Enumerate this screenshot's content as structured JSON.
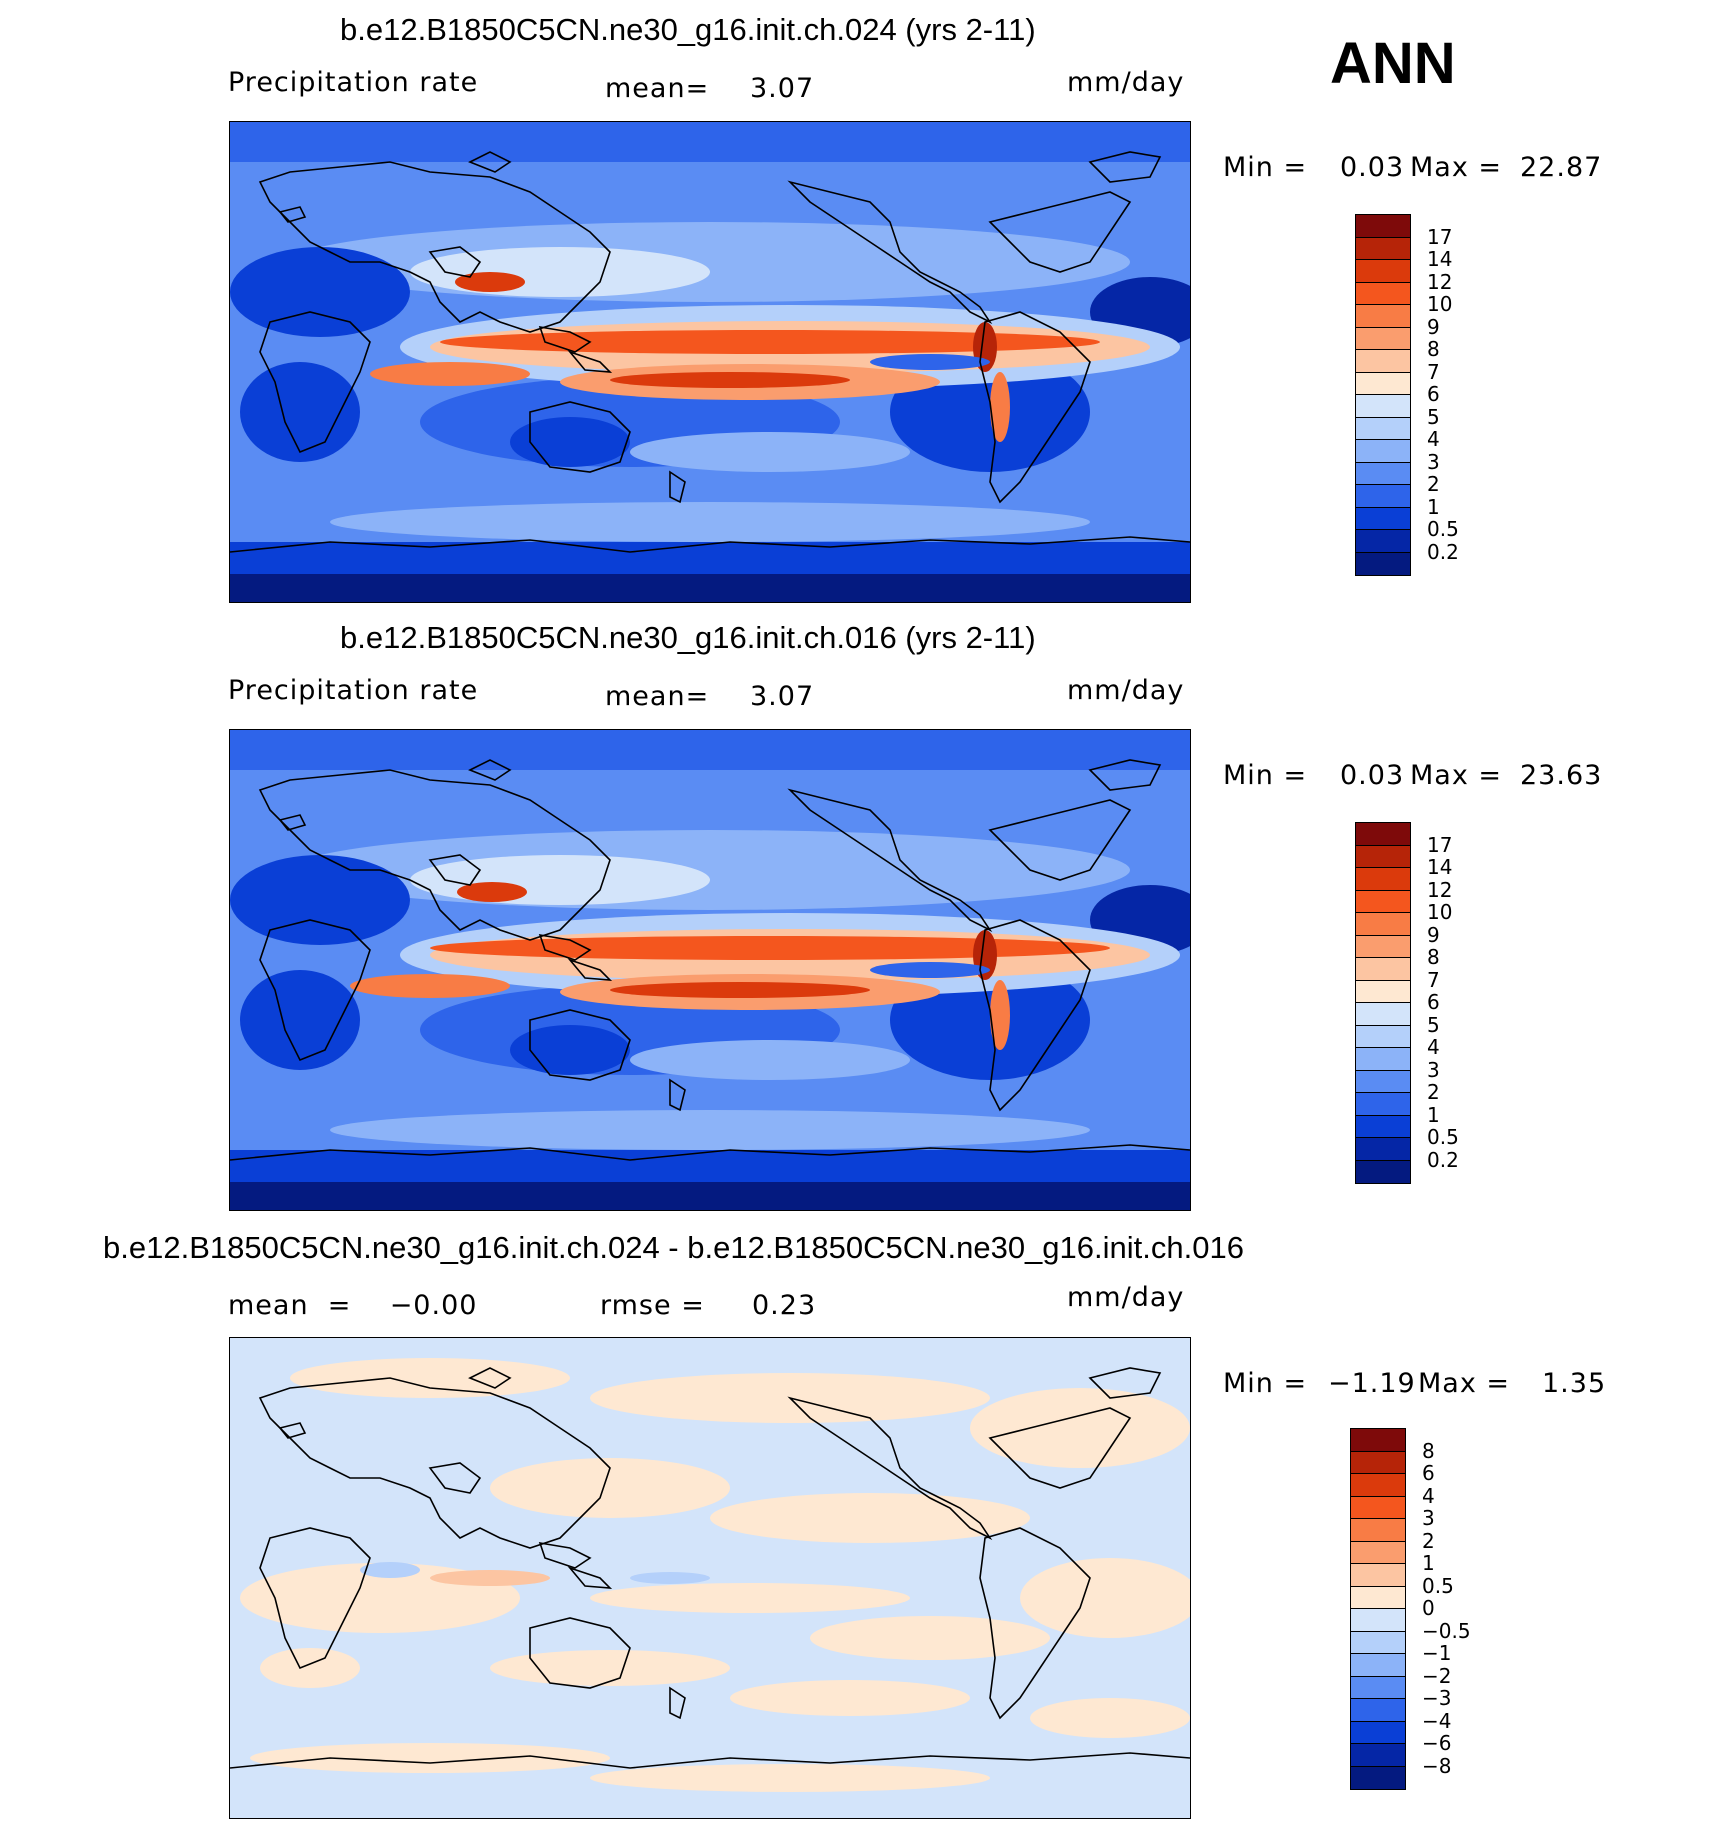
{
  "season": "ANN",
  "panels": [
    {
      "title": "b.e12.B1850C5CN.ne30_g16.init.ch.024 (yrs 2-11)",
      "left_label": "Precipitation  rate",
      "mid_label": "mean=",
      "mid_value": "3.07",
      "units": "mm/day",
      "min_label": "Min  =",
      "min_value": "0.03",
      "max_label": "Max  =",
      "max_value": "22.87",
      "levels": [
        "17",
        "14",
        "12",
        "10",
        "9",
        "8",
        "7",
        "6",
        "5",
        "4",
        "3",
        "2",
        "1",
        "0.5",
        "0.2"
      ],
      "colors": [
        "#7e0a0a",
        "#b62408",
        "#db3a0c",
        "#f4561e",
        "#f87c45",
        "#fa9d6e",
        "#fcc5a2",
        "#fee8d2",
        "#d3e4fa",
        "#b4d0fa",
        "#8cb3f8",
        "#5a8cf3",
        "#2e64ea",
        "#0a3fd6",
        "#0526a6",
        "#041a80"
      ]
    },
    {
      "title": "b.e12.B1850C5CN.ne30_g16.init.ch.016 (yrs 2-11)",
      "left_label": "Precipitation  rate",
      "mid_label": "mean=",
      "mid_value": "3.07",
      "units": "mm/day",
      "min_label": "Min  =",
      "min_value": "0.03",
      "max_label": "Max  =",
      "max_value": "23.63",
      "levels": [
        "17",
        "14",
        "12",
        "10",
        "9",
        "8",
        "7",
        "6",
        "5",
        "4",
        "3",
        "2",
        "1",
        "0.5",
        "0.2"
      ],
      "colors": [
        "#7e0a0a",
        "#b62408",
        "#db3a0c",
        "#f4561e",
        "#f87c45",
        "#fa9d6e",
        "#fcc5a2",
        "#fee8d2",
        "#d3e4fa",
        "#b4d0fa",
        "#8cb3f8",
        "#5a8cf3",
        "#2e64ea",
        "#0a3fd6",
        "#0526a6",
        "#041a80"
      ]
    },
    {
      "title": "b.e12.B1850C5CN.ne30_g16.init.ch.024 - b.e12.B1850C5CN.ne30_g16.init.ch.016",
      "left_label": "mean  =    −0.00",
      "mid_label": "rmse  =",
      "mid_value": "0.23",
      "units": "mm/day",
      "min_label": "Min  =",
      "min_value": "−1.19",
      "max_label": "Max  =",
      "max_value": "1.35",
      "levels": [
        "8",
        "6",
        "4",
        "3",
        "2",
        "1",
        "0.5",
        "0",
        "−0.5",
        "−1",
        "−2",
        "−3",
        "−4",
        "−6",
        "−8"
      ],
      "colors": [
        "#7e0a0a",
        "#b62408",
        "#db3a0c",
        "#f4561e",
        "#f87c45",
        "#fa9d6e",
        "#fcc5a2",
        "#fee8d2",
        "#d3e4fa",
        "#b4d0fa",
        "#8cb3f8",
        "#5a8cf3",
        "#2e64ea",
        "#0a3fd6",
        "#0526a6",
        "#041a80"
      ]
    }
  ]
}
